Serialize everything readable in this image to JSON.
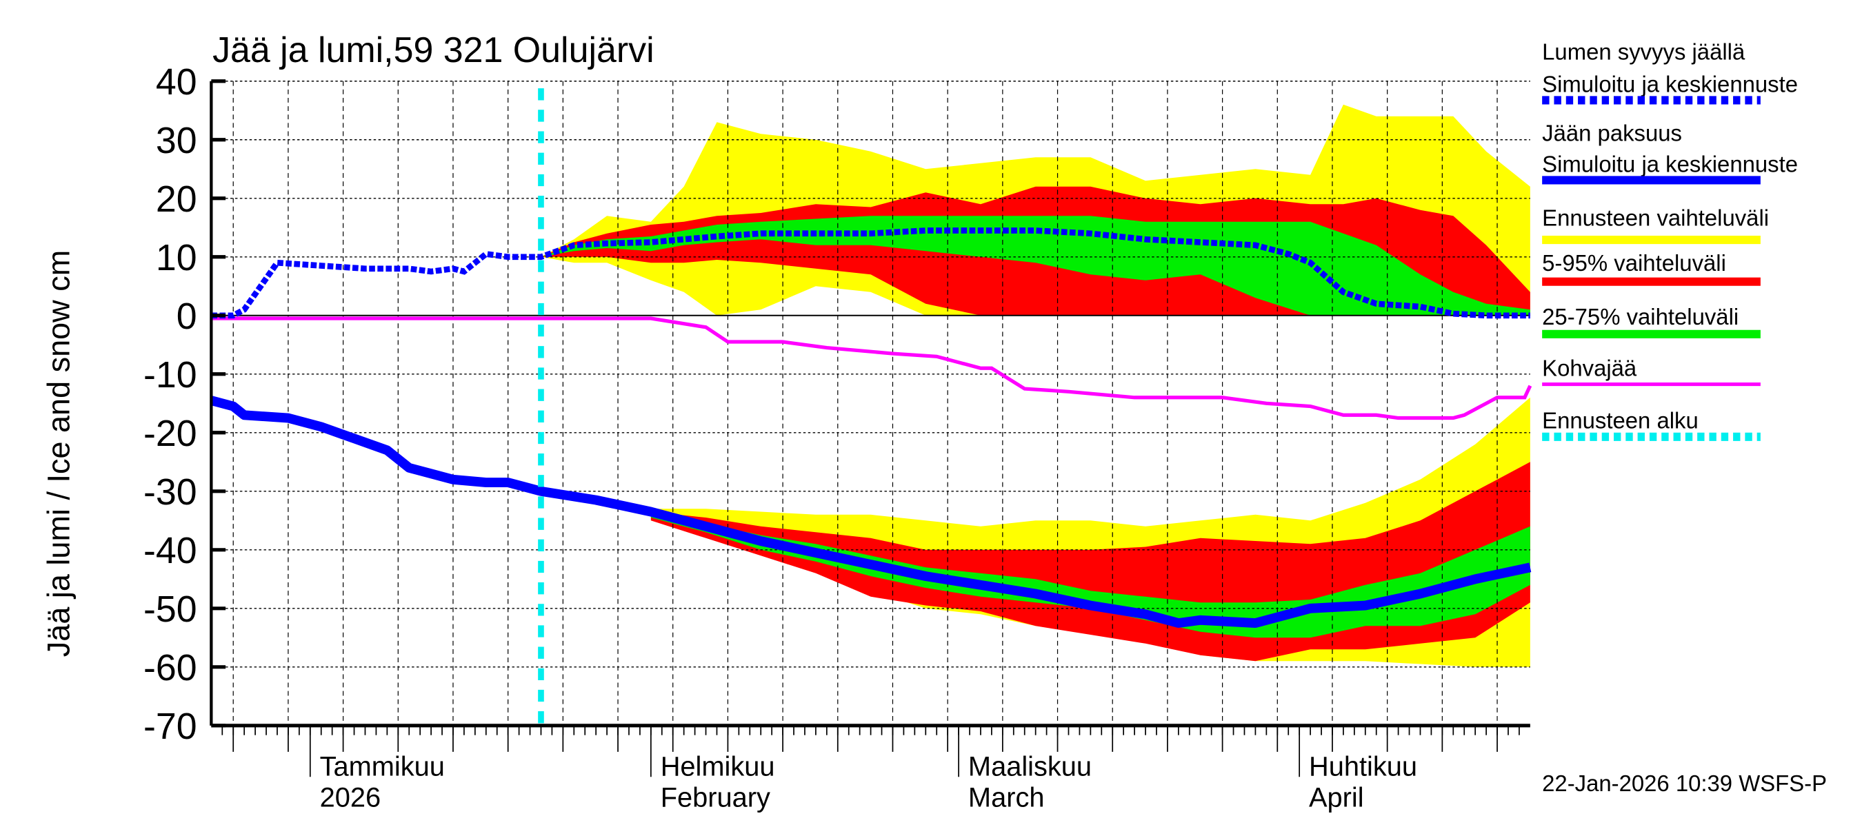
{
  "chart_data": {
    "type": "area",
    "title": "Jää ja lumi,59 321 Oulujärvi",
    "ylabel": "Jää ja lumi / Ice and snow    cm",
    "xlabel": "",
    "ylim": [
      -70,
      40
    ],
    "yticks": [
      40,
      30,
      20,
      10,
      0,
      -10,
      -20,
      -30,
      -40,
      -50,
      -60,
      -70
    ],
    "x_unit": "days since 2025-12-23",
    "xlim": [
      0,
      120
    ],
    "grid": true,
    "legend_position": "right",
    "forecast_start_day": 30,
    "month_labels": [
      {
        "day": 9,
        "line1": "Tammikuu",
        "line2": "2026"
      },
      {
        "day": 40,
        "line1": "Helmikuu",
        "line2": "February"
      },
      {
        "day": 68,
        "line1": "Maaliskuu",
        "line2": "March"
      },
      {
        "day": 99,
        "line1": "Huhtikuu",
        "line2": "April"
      }
    ],
    "colors": {
      "snow": "#0000ff",
      "ice": "#0000ff",
      "range": "#ffff00",
      "p5_95": "#ff0000",
      "p25_75": "#00ee00",
      "kohva": "#ff00ff",
      "start": "#00eeee"
    },
    "snow_depth": {
      "x": [
        0,
        2,
        3,
        6,
        10,
        14,
        18,
        20,
        22,
        23,
        25,
        27,
        30,
        33,
        36,
        40,
        43,
        46,
        50,
        55,
        60,
        65,
        70,
        75,
        80,
        85,
        90,
        95,
        98,
        100,
        103,
        106,
        110,
        113,
        116,
        120
      ],
      "y": [
        0,
        0,
        1,
        9,
        8.5,
        8,
        8,
        7.5,
        8,
        7.5,
        10.5,
        10,
        10,
        12,
        12.3,
        12.5,
        13,
        13.5,
        14,
        14,
        14,
        14.5,
        14.5,
        14.5,
        14,
        13,
        12.5,
        12,
        10.5,
        9,
        4,
        2,
        1.5,
        0.3,
        0,
        0
      ]
    },
    "snow_bands": {
      "x": [
        30,
        33,
        36,
        40,
        43,
        46,
        50,
        55,
        60,
        65,
        70,
        75,
        80,
        85,
        90,
        95,
        100,
        103,
        106,
        110,
        113,
        116,
        120
      ],
      "range_min": [
        10,
        9,
        9,
        6,
        4,
        0,
        1,
        5,
        4,
        0,
        0,
        0,
        0,
        0,
        0,
        0,
        0,
        0,
        0,
        0,
        0,
        0,
        0
      ],
      "range_max": [
        10,
        13,
        17,
        16,
        22,
        33,
        31,
        30,
        28,
        25,
        26,
        27,
        27,
        23,
        24,
        25,
        24,
        36,
        34,
        34,
        34,
        28,
        22
      ],
      "p5": [
        10,
        10,
        10,
        9,
        9,
        9.5,
        9,
        8,
        7,
        2,
        0,
        0,
        0,
        0,
        0,
        0,
        0,
        0,
        0,
        0,
        0,
        0,
        0
      ],
      "p95": [
        10,
        12.5,
        14,
        15.5,
        16,
        17,
        17.5,
        19,
        18.5,
        21,
        19,
        22,
        22,
        20,
        19,
        20,
        19,
        19,
        20,
        18,
        17,
        12,
        4
      ],
      "p25": [
        10,
        11,
        11.5,
        11,
        12,
        12.5,
        13,
        12,
        12,
        11,
        10,
        9,
        7,
        6,
        7,
        3,
        0,
        0,
        0,
        0,
        0,
        0,
        0
      ],
      "p75": [
        10,
        12,
        13,
        13.5,
        14.5,
        15.5,
        16,
        16.5,
        17,
        17,
        17,
        17,
        17,
        16,
        16,
        16,
        16,
        14,
        12,
        7,
        4,
        2,
        1
      ]
    },
    "ice_thickness": {
      "x": [
        0,
        2,
        3,
        7,
        10,
        13,
        16,
        18,
        22,
        25,
        27,
        30,
        35,
        40,
        45,
        50,
        55,
        60,
        65,
        70,
        75,
        80,
        85,
        88,
        90,
        95,
        100,
        105,
        110,
        115,
        120
      ],
      "y": [
        -14.5,
        -15.5,
        -17,
        -17.5,
        -19,
        -21,
        -23,
        -26,
        -28,
        -28.5,
        -28.5,
        -30,
        -31.5,
        -33.5,
        -36,
        -38.5,
        -40.5,
        -42.5,
        -44.5,
        -46,
        -47.5,
        -49.5,
        -51,
        -52.5,
        -52,
        -52.5,
        -50,
        -49.5,
        -47.5,
        -45,
        -43
      ]
    },
    "ice_bands": {
      "x": [
        40,
        45,
        50,
        55,
        60,
        65,
        70,
        75,
        80,
        85,
        90,
        95,
        100,
        105,
        110,
        115,
        120
      ],
      "range_max": [
        -33,
        -33,
        -33.5,
        -34,
        -34,
        -35,
        -36,
        -35,
        -35,
        -36,
        -35,
        -34,
        -35,
        -32,
        -28,
        -22,
        -14
      ],
      "range_min": [
        -35,
        -37.5,
        -40,
        -43,
        -47,
        -50,
        -51,
        -53,
        -54,
        -55,
        -58,
        -59,
        -59,
        -59,
        -59.5,
        -60,
        -60
      ],
      "p95": [
        -33.5,
        -34.5,
        -36,
        -37,
        -38,
        -40,
        -40,
        -40,
        -40,
        -39.5,
        -38,
        -38.5,
        -39,
        -38,
        -35,
        -30,
        -25
      ],
      "p5": [
        -35,
        -38,
        -41,
        -44,
        -48,
        -49.5,
        -50.5,
        -53,
        -54.5,
        -56,
        -58,
        -59,
        -57,
        -57,
        -56,
        -55,
        -49
      ],
      "p75": [
        -33.5,
        -35.5,
        -37.5,
        -39,
        -41,
        -43,
        -44,
        -45,
        -47,
        -48,
        -49,
        -49,
        -48.5,
        -46,
        -44,
        -40,
        -36
      ],
      "p25": [
        -34.5,
        -37,
        -40,
        -42,
        -44.5,
        -46.5,
        -48,
        -49,
        -50,
        -52,
        -54,
        -55,
        -55,
        -53,
        -53,
        -51,
        -46
      ]
    },
    "kohvajaa": {
      "x": [
        0,
        40,
        45,
        47,
        52,
        56,
        62,
        66,
        70,
        71,
        74,
        78,
        84,
        92,
        96,
        100,
        103,
        106,
        108,
        113,
        114,
        117,
        119.5,
        120
      ],
      "y": [
        -0.5,
        -0.5,
        -2,
        -4.5,
        -4.5,
        -5.5,
        -6.5,
        -7,
        -9,
        -9,
        -12.5,
        -13,
        -14,
        -14,
        -15,
        -15.5,
        -17,
        -17,
        -17.5,
        -17.5,
        -17,
        -14,
        -14,
        -12
      ]
    },
    "legend": [
      {
        "line1": "Lumen syvyys jäällä",
        "line2": "Simuloitu ja keskiennuste",
        "style": "dotted",
        "color": "#0000ff"
      },
      {
        "line1": "Jään paksuus",
        "line2": "Simuloitu ja keskiennuste",
        "style": "solid",
        "color": "#0000ff"
      },
      {
        "line1": "Ennusteen vaihteluväli",
        "style": "solid",
        "color": "#ffff00"
      },
      {
        "line1": "5-95% vaihteluväli",
        "style": "solid",
        "color": "#ff0000"
      },
      {
        "line1": "25-75% vaihteluväli",
        "style": "solid",
        "color": "#00ee00"
      },
      {
        "line1": "Kohvajää",
        "style": "thin",
        "color": "#ff00ff"
      },
      {
        "line1": "Ennusteen alku",
        "style": "dotted",
        "color": "#00eeee"
      }
    ],
    "footer": "22-Jan-2026 10:39 WSFS-P"
  }
}
